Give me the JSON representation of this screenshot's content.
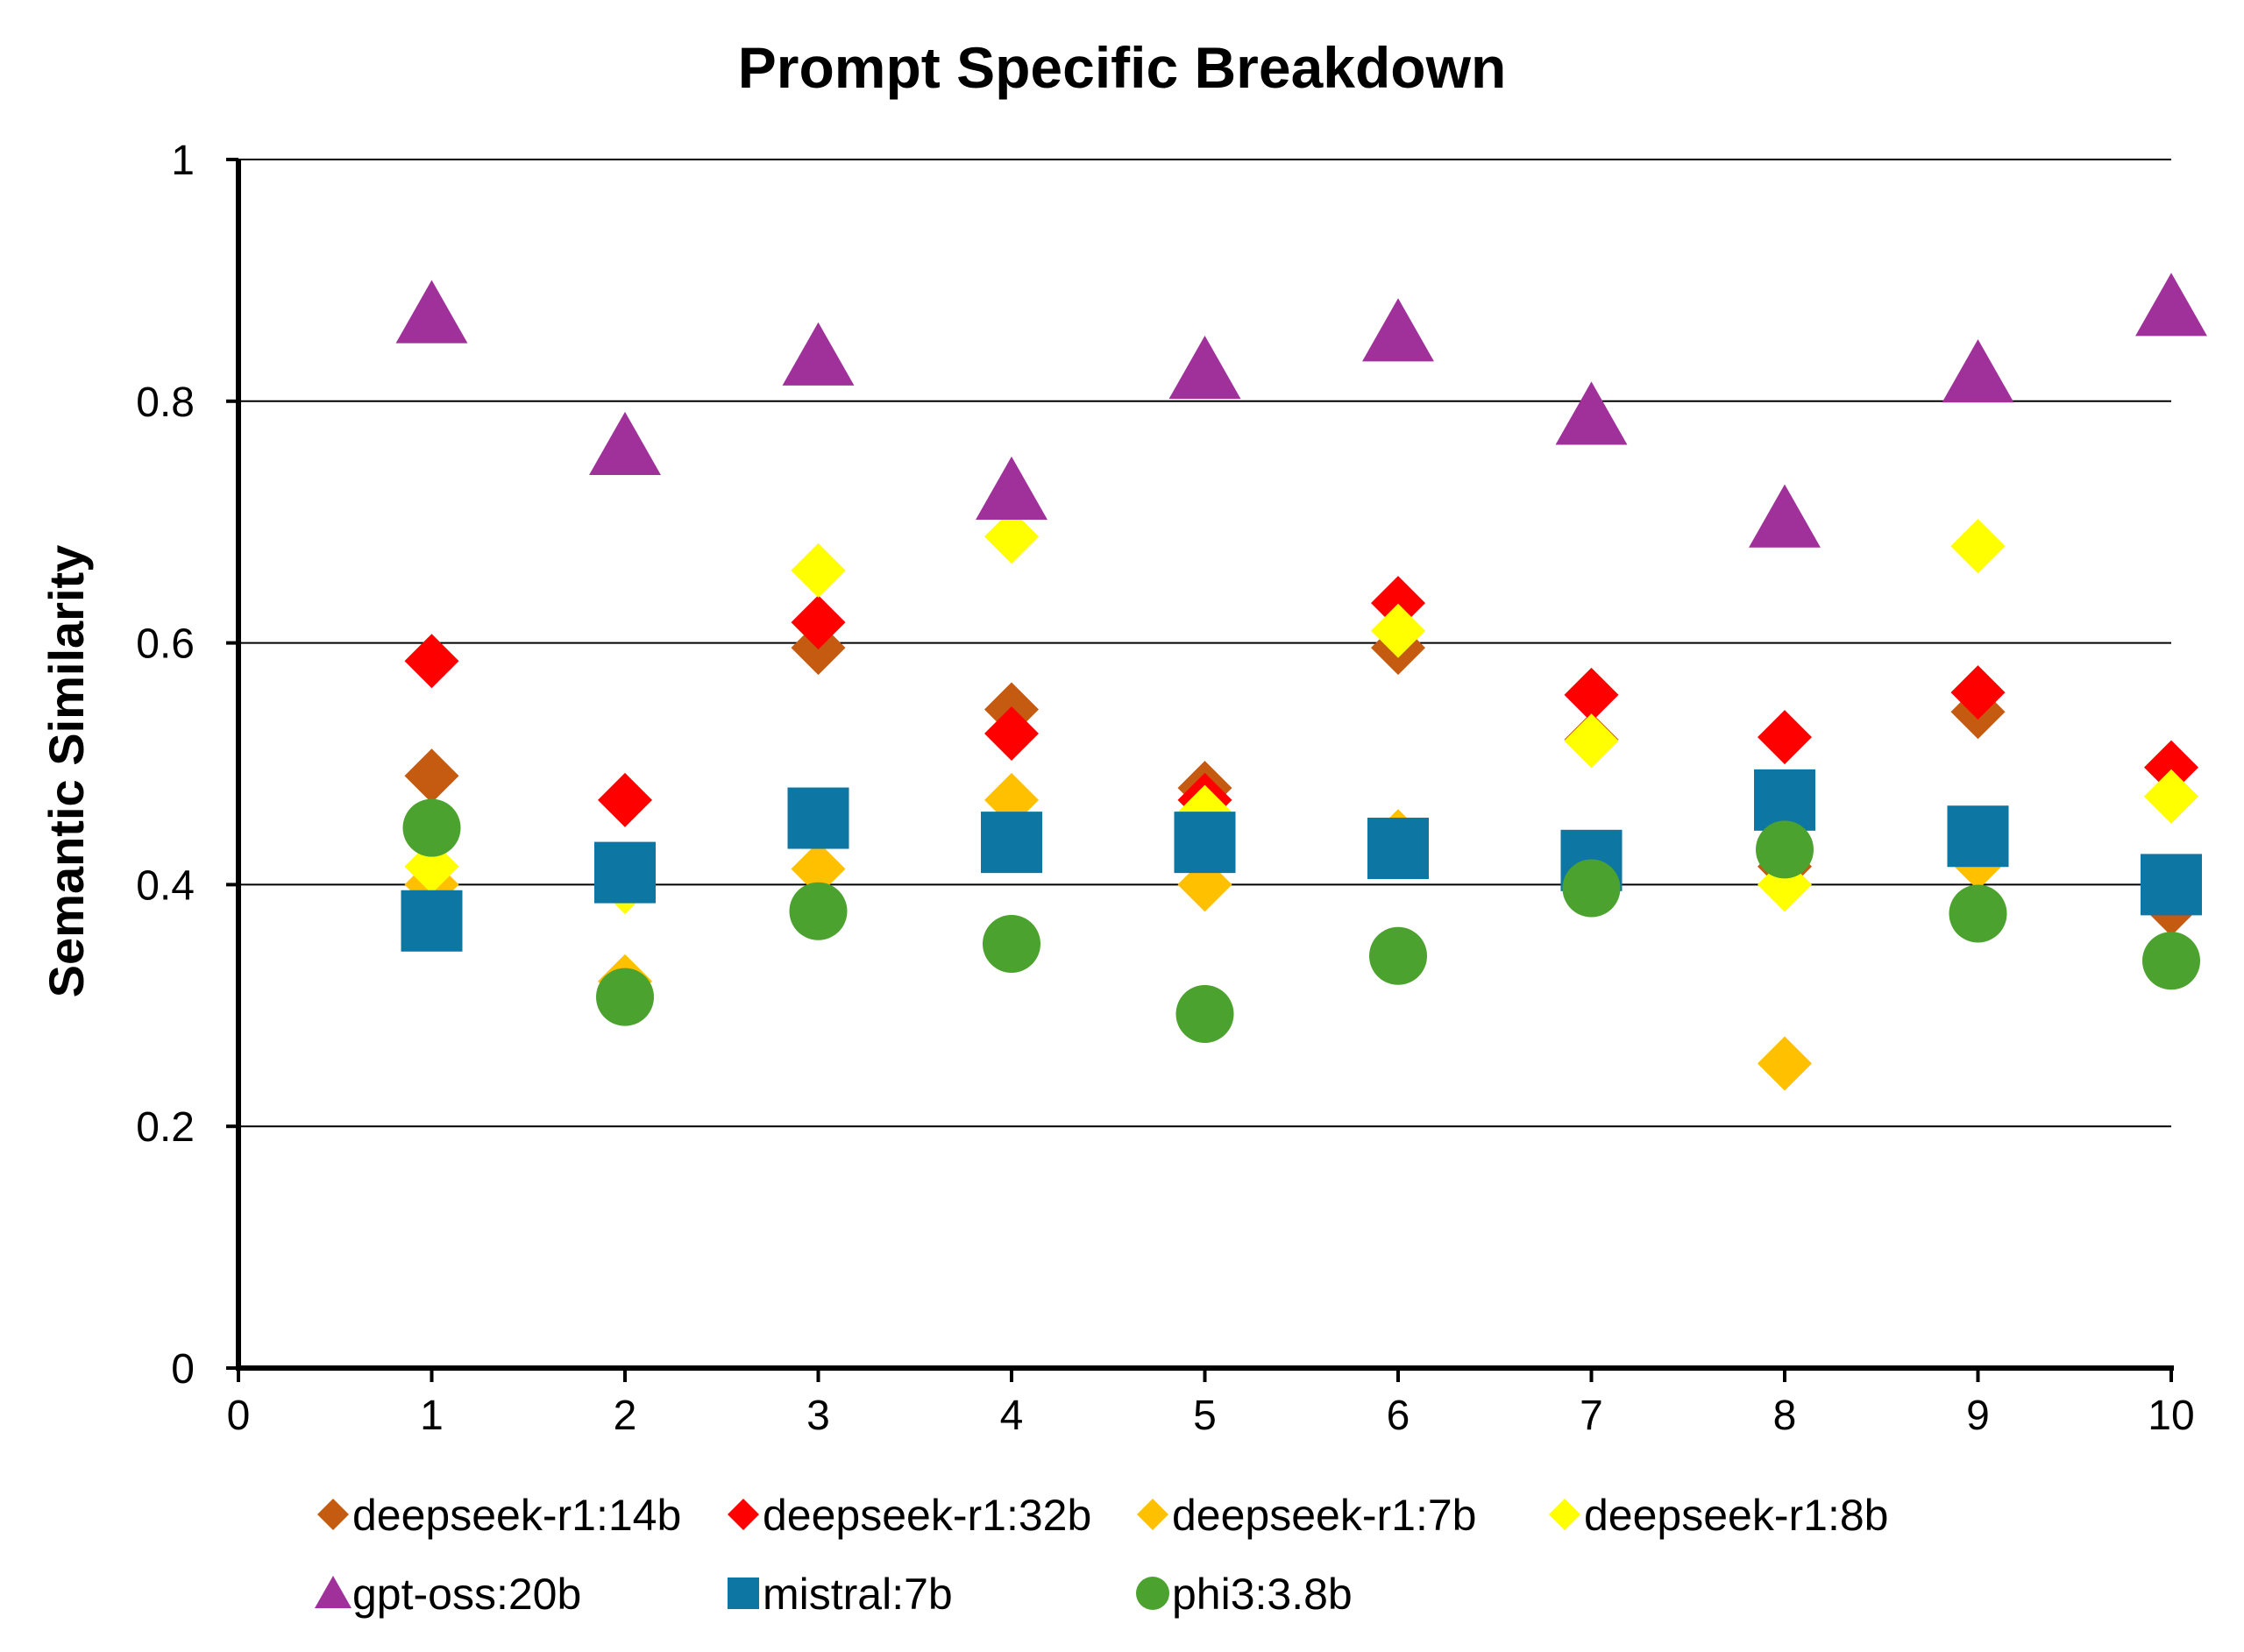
{
  "chart_data": {
    "type": "scatter",
    "title": "Prompt Specific Breakdown",
    "xlabel": "",
    "ylabel": "Semantic Similarity",
    "xlim": [
      0,
      10
    ],
    "ylim": [
      0,
      1
    ],
    "xticks": [
      "0",
      "1",
      "2",
      "3",
      "4",
      "5",
      "6",
      "7",
      "8",
      "9",
      "10"
    ],
    "yticks": [
      "0",
      "0.2",
      "0.4",
      "0.6",
      "0.8",
      "1"
    ],
    "grid": "horizontal",
    "legend_position": "bottom",
    "x": [
      1,
      2,
      3,
      4,
      5,
      6,
      7,
      8,
      9,
      10
    ],
    "series": [
      {
        "name": "deepseek-r1:14b",
        "marker": "diamond",
        "color": "#c55a11",
        "values": [
          0.49,
          null,
          0.596,
          0.545,
          0.48,
          0.596,
          0.52,
          0.415,
          0.543,
          0.38
        ]
      },
      {
        "name": "deepseek-r1:32b",
        "marker": "diamond",
        "color": "#ff0000",
        "values": [
          0.585,
          0.47,
          0.617,
          0.525,
          0.47,
          0.633,
          0.557,
          0.522,
          0.559,
          0.497
        ]
      },
      {
        "name": "deepseek-r1:7b",
        "marker": "diamond",
        "color": "#ffc000",
        "values": [
          0.4,
          0.32,
          0.413,
          0.47,
          0.4,
          0.44,
          null,
          0.252,
          0.418,
          null
        ]
      },
      {
        "name": "deepseek-r1:8b",
        "marker": "diamond",
        "color": "#ffff00",
        "values": [
          0.415,
          0.398,
          0.66,
          0.688,
          0.46,
          0.61,
          0.519,
          0.4,
          0.68,
          0.473
        ]
      },
      {
        "name": "gpt-oss:20b",
        "marker": "triangle",
        "color": "#a0309a",
        "values": [
          0.872,
          0.763,
          0.837,
          0.726,
          0.826,
          0.857,
          0.788,
          0.703,
          0.823,
          0.878
        ]
      },
      {
        "name": "mistral:7b",
        "marker": "square",
        "color": "#0e76a2",
        "values": [
          0.37,
          0.41,
          0.455,
          0.435,
          0.435,
          0.43,
          0.42,
          0.47,
          0.44,
          0.4
        ]
      },
      {
        "name": "phi3:3.8b",
        "marker": "circle",
        "color": "#4ba22e",
        "values": [
          0.447,
          0.307,
          0.378,
          0.351,
          0.293,
          0.341,
          0.397,
          0.429,
          0.376,
          0.337
        ]
      }
    ]
  }
}
